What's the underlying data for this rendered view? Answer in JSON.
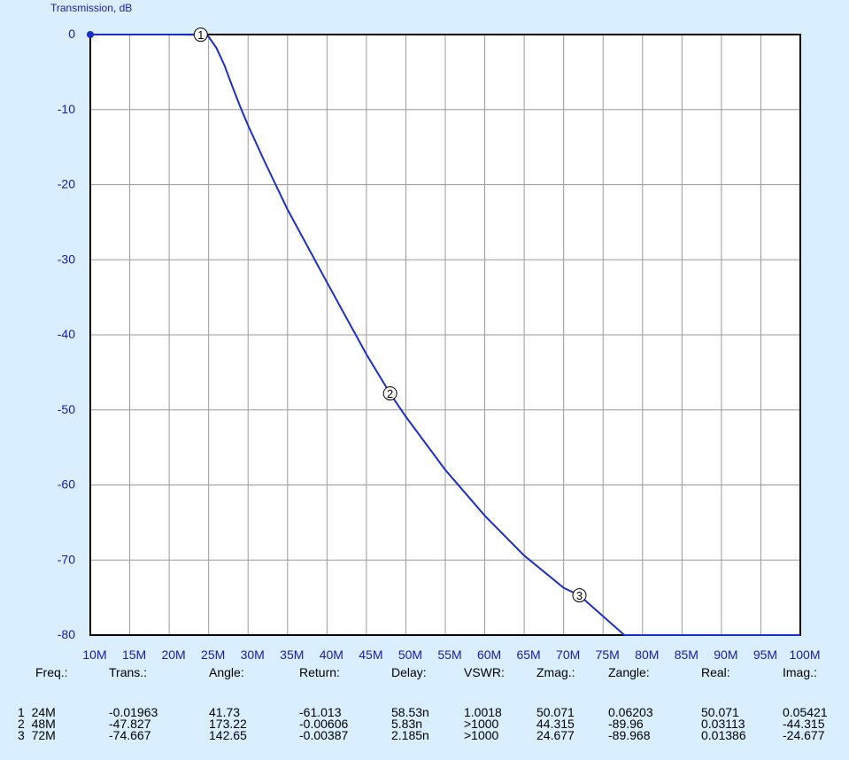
{
  "colors": {
    "background": "#d9eeff",
    "plot_area": "#ffffff",
    "grid": "#9a9a9a",
    "curve": "#1a2ecf",
    "axis_text": "#1a1aaa"
  },
  "chart_data": {
    "type": "line",
    "title": "Transmission, dB",
    "xlabel": "",
    "ylabel": "Transmission, dB",
    "xlim": [
      10,
      100
    ],
    "ylim": [
      -80,
      0
    ],
    "grid": true,
    "x_tick_labels": [
      "10M",
      "15M",
      "20M",
      "25M",
      "30M",
      "35M",
      "40M",
      "45M",
      "50M",
      "55M",
      "60M",
      "65M",
      "70M",
      "75M",
      "80M",
      "85M",
      "90M",
      "95M",
      "100M"
    ],
    "y_tick_labels": [
      "0",
      "-10",
      "-20",
      "-30",
      "-40",
      "-50",
      "-60",
      "-70",
      "-80"
    ],
    "series": [
      {
        "x": [
          10,
          20,
          24,
          25,
          26,
          27,
          28,
          29,
          30,
          32,
          35,
          40,
          45,
          48,
          50,
          55,
          60,
          65,
          70,
          72,
          75,
          77.7,
          80,
          90,
          100
        ],
        "y": [
          0,
          0,
          -0.02,
          -0.3,
          -1.8,
          -4.1,
          -6.9,
          -9.6,
          -12.1,
          -16.7,
          -23.3,
          -33.0,
          -42.6,
          -47.8,
          -50.9,
          -58.0,
          -64.1,
          -69.4,
          -73.7,
          -74.7,
          -77.5,
          -80,
          -80,
          -80,
          -80
        ]
      }
    ],
    "markers": [
      {
        "label": "1",
        "x": 24,
        "y": -0.02
      },
      {
        "label": "2",
        "x": 48,
        "y": -47.8
      },
      {
        "label": "3",
        "x": 72,
        "y": -74.7
      }
    ]
  },
  "table": {
    "headers": [
      "Freq.:",
      "Trans.:",
      "Angle:",
      "Return:",
      "Delay:",
      "VSWR:",
      "Zmag.:",
      "Zangle:",
      "Real:",
      "Imag.:"
    ],
    "rows": [
      [
        "1  24M",
        "-0.01963",
        "41.73",
        "-61.013",
        "58.53n",
        "1.0018",
        "50.071",
        "0.06203",
        "50.071",
        "0.05421"
      ],
      [
        "2  48M",
        "-47.827",
        "173.22",
        "-0.00606",
        "5.83n",
        ">1000",
        "44.315",
        "-89.96",
        "0.03113",
        "-44.315"
      ],
      [
        "3  72M",
        "-74.667",
        "142.65",
        "-0.00387",
        "2.185n",
        ">1000",
        "24.677",
        "-89.968",
        "0.01386",
        "-24.677"
      ]
    ]
  }
}
